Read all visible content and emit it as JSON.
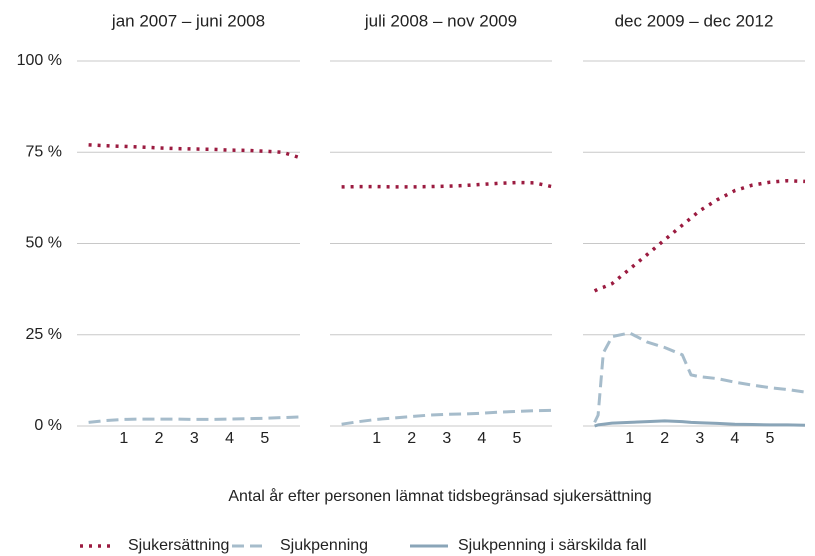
{
  "chart_data": [
    {
      "type": "line",
      "title": "jan 2007 – juni 2008",
      "x": [
        0,
        0.5,
        1,
        1.5,
        2,
        2.5,
        3,
        3.5,
        4,
        4.5,
        5,
        5.5,
        6
      ],
      "xlim": [
        -0.33,
        6
      ],
      "xticks": [
        1,
        2,
        3,
        4,
        5
      ],
      "ylim": [
        0,
        100
      ],
      "yticks": [
        {
          "value": 0,
          "label": "0 %"
        },
        {
          "value": 25,
          "label": "25 %"
        },
        {
          "value": 50,
          "label": "50 %"
        },
        {
          "value": 75,
          "label": "75 %"
        },
        {
          "value": 100,
          "label": "100 %"
        }
      ],
      "grid": true,
      "series": [
        {
          "name": "Sjukersättning",
          "color": "#9b1b40",
          "style": "dotted",
          "values": [
            77,
            76.8,
            76.6,
            76.4,
            76.2,
            76,
            75.9,
            75.8,
            75.6,
            75.5,
            75.3,
            75,
            73.5
          ]
        },
        {
          "name": "Sjukpenning",
          "color": "#a6bccb",
          "style": "dashed",
          "values": [
            1,
            1.5,
            1.8,
            1.9,
            1.9,
            1.9,
            1.8,
            1.8,
            1.9,
            2,
            2.1,
            2.3,
            2.5
          ]
        }
      ]
    },
    {
      "type": "line",
      "title": "juli 2008 – nov 2009",
      "x": [
        0,
        0.5,
        1,
        1.5,
        2,
        2.5,
        3,
        3.5,
        4,
        4.5,
        5,
        5.5,
        6
      ],
      "xlim": [
        -0.33,
        6
      ],
      "xticks": [
        1,
        2,
        3,
        4,
        5
      ],
      "ylim": [
        0,
        100
      ],
      "yticks": [
        0,
        25,
        50,
        75,
        100
      ],
      "grid": true,
      "series": [
        {
          "name": "Sjukersättning",
          "color": "#9b1b40",
          "style": "dotted",
          "values": [
            65.5,
            65.6,
            65.6,
            65.5,
            65.5,
            65.6,
            65.7,
            65.9,
            66.2,
            66.5,
            66.7,
            66.6,
            65.6
          ]
        },
        {
          "name": "Sjukpenning",
          "color": "#a6bccb",
          "style": "dashed",
          "values": [
            0.5,
            1.2,
            1.8,
            2.2,
            2.6,
            3,
            3.2,
            3.3,
            3.5,
            3.8,
            4,
            4.2,
            4.3
          ]
        }
      ]
    },
    {
      "type": "line",
      "title": "dec 2009 – dec 2012",
      "x": [
        0,
        0.1,
        0.25,
        0.5,
        1,
        1.5,
        2,
        2.5,
        2.75,
        3,
        3.5,
        4,
        4.5,
        5,
        5.5,
        6
      ],
      "xlim": [
        -0.33,
        6
      ],
      "xticks": [
        1,
        2,
        3,
        4,
        5
      ],
      "ylim": [
        0,
        100
      ],
      "yticks": [
        0,
        25,
        50,
        75,
        100
      ],
      "grid": true,
      "series": [
        {
          "name": "Sjukersättning",
          "color": "#9b1b40",
          "style": "dotted",
          "values": [
            37,
            37.5,
            38,
            39,
            43,
            47,
            51,
            55,
            57,
            59,
            62,
            64.5,
            66,
            66.8,
            67.2,
            67
          ]
        },
        {
          "name": "Sjukpenning",
          "color": "#a6bccb",
          "style": "dashed",
          "values": [
            1,
            3,
            20,
            24.5,
            25.5,
            23,
            21.5,
            19.5,
            14,
            13.5,
            13,
            12,
            11.2,
            10.5,
            10,
            9.3
          ]
        },
        {
          "name": "Sjukpenning i särskilda fall",
          "color": "#8aa5b8",
          "style": "solid",
          "values": [
            0,
            0.3,
            0.5,
            0.8,
            1,
            1.2,
            1.4,
            1.2,
            1,
            0.9,
            0.7,
            0.5,
            0.4,
            0.3,
            0.3,
            0.2
          ]
        }
      ]
    }
  ],
  "x_label": "Antal år efter personen lämnat tidsbegränsad sjukersättning"
}
